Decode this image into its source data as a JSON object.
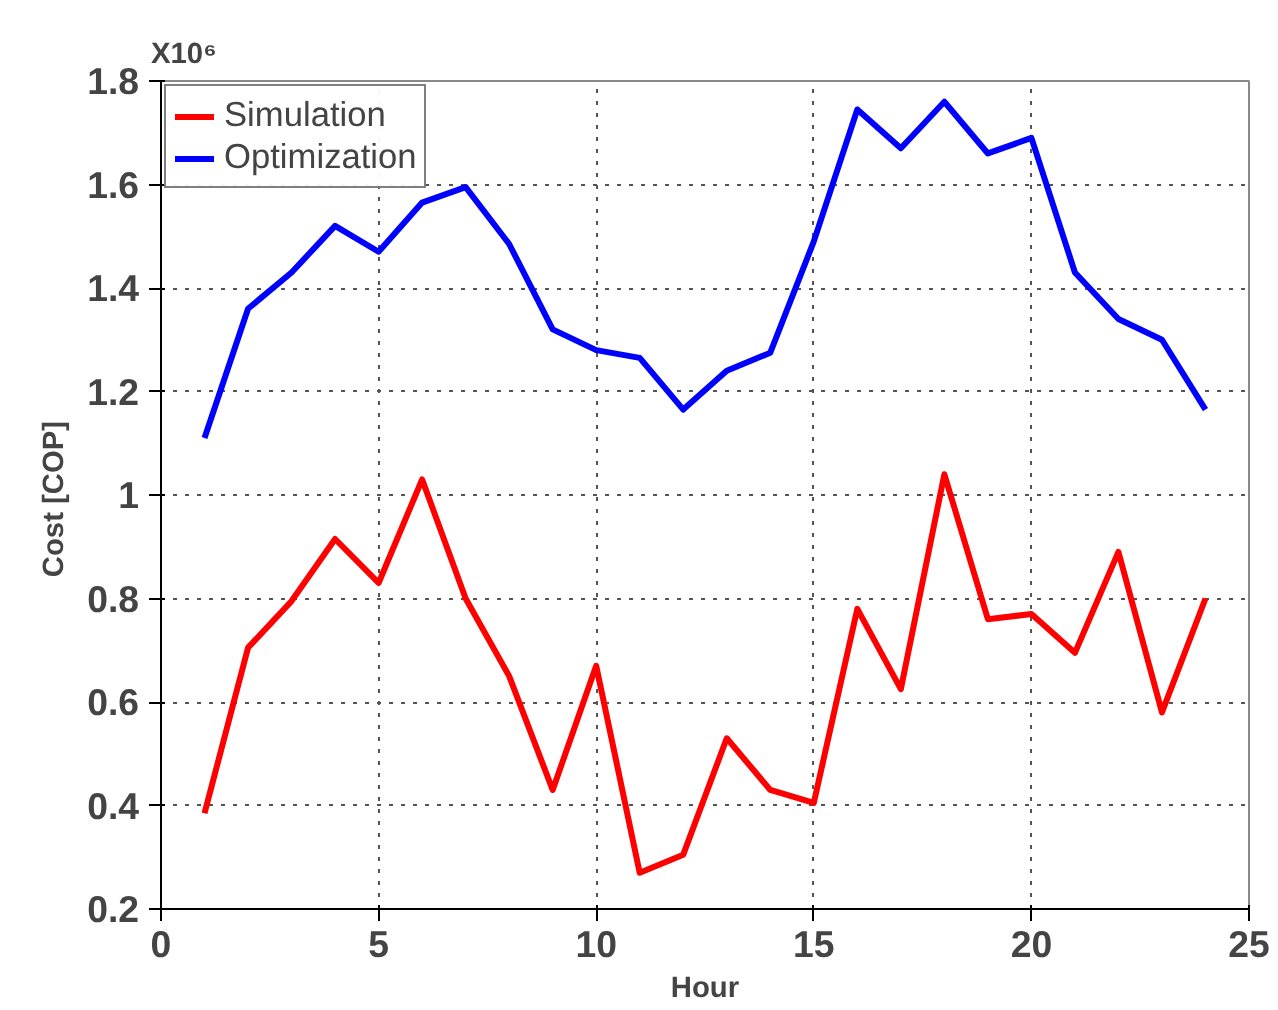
{
  "chart_data": {
    "type": "line",
    "xlabel": "Hour",
    "ylabel": "Cost  [COP]",
    "annotations": [
      "X10⁶"
    ],
    "x": [
      1,
      2,
      3,
      4,
      5,
      6,
      7,
      8,
      9,
      10,
      11,
      12,
      13,
      14,
      15,
      16,
      17,
      18,
      19,
      20,
      21,
      22,
      23,
      24
    ],
    "series": [
      {
        "name": "Simulation",
        "color": "#ff0000",
        "values": [
          0.385,
          0.705,
          0.795,
          0.915,
          0.83,
          1.03,
          0.8,
          0.65,
          0.43,
          0.67,
          0.27,
          0.305,
          0.53,
          0.43,
          0.405,
          0.78,
          0.625,
          1.04,
          0.76,
          0.77,
          0.695,
          0.89,
          0.58,
          0.8
        ]
      },
      {
        "name": "Optimization",
        "color": "#0000ff",
        "values": [
          1.11,
          1.36,
          1.43,
          1.52,
          1.47,
          1.565,
          1.595,
          1.485,
          1.32,
          1.28,
          1.265,
          1.165,
          1.24,
          1.275,
          1.49,
          1.745,
          1.67,
          1.76,
          1.66,
          1.69,
          1.43,
          1.34,
          1.3,
          1.165
        ]
      }
    ],
    "xlim": [
      0,
      25
    ],
    "xticks": [
      0,
      5,
      10,
      15,
      20,
      25
    ],
    "ylim": [
      0.2,
      1.8
    ],
    "yticks": [
      {
        "value": 0.2,
        "label": "0.2"
      },
      {
        "value": 0.4,
        "label": "0.4"
      },
      {
        "value": 0.6,
        "label": "0.6"
      },
      {
        "value": 0.8,
        "label": "0.8"
      },
      {
        "value": 1,
        "label": "1"
      },
      {
        "value": 1.2,
        "label": "1.2"
      },
      {
        "value": 1.4,
        "label": "1.4"
      },
      {
        "value": 1.6,
        "label": "1.6"
      },
      {
        "value": 1.8,
        "label": "1.8"
      }
    ],
    "grid": true,
    "legend": "top left",
    "line_style": "solid"
  }
}
